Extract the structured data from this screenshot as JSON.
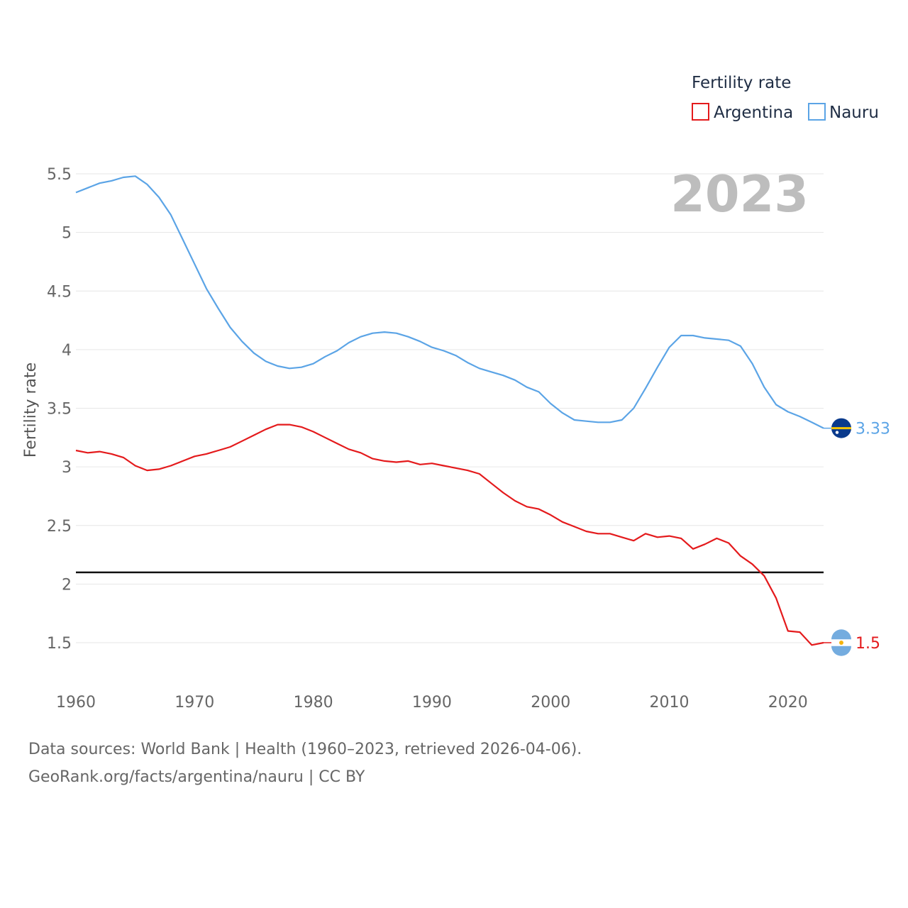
{
  "chart_data": {
    "type": "line",
    "ylabel": "Fertility rate",
    "xlabel": "",
    "year_label": "2023",
    "legend_title": "Fertility rate",
    "xlim": [
      1960,
      2023
    ],
    "ylim": [
      1.3,
      5.55
    ],
    "x_ticks": [
      1960,
      1970,
      1980,
      1990,
      2000,
      2010,
      2020
    ],
    "x_tick_labels": [
      "1960",
      "1970",
      "1980",
      "1990",
      "2000",
      "2010",
      "2020"
    ],
    "y_ticks": [
      1.5,
      2,
      2.5,
      3,
      3.5,
      4,
      4.5,
      5,
      5.5
    ],
    "y_tick_labels": [
      "1.5",
      "2",
      "2.5",
      "3",
      "3.5",
      "4",
      "4.5",
      "5",
      "5.5"
    ],
    "reference_line": 2.1,
    "x": [
      1960,
      1961,
      1962,
      1963,
      1964,
      1965,
      1966,
      1967,
      1968,
      1969,
      1970,
      1971,
      1972,
      1973,
      1974,
      1975,
      1976,
      1977,
      1978,
      1979,
      1980,
      1981,
      1982,
      1983,
      1984,
      1985,
      1986,
      1987,
      1988,
      1989,
      1990,
      1991,
      1992,
      1993,
      1994,
      1995,
      1996,
      1997,
      1998,
      1999,
      2000,
      2001,
      2002,
      2003,
      2004,
      2005,
      2006,
      2007,
      2008,
      2009,
      2010,
      2011,
      2012,
      2013,
      2014,
      2015,
      2016,
      2017,
      2018,
      2019,
      2020,
      2021,
      2022,
      2023
    ],
    "series": [
      {
        "name": "Argentina",
        "color": "#e41a1c",
        "end_label": "1.5",
        "values": [
          3.14,
          3.12,
          3.13,
          3.11,
          3.08,
          3.01,
          2.97,
          2.98,
          3.01,
          3.05,
          3.09,
          3.11,
          3.14,
          3.17,
          3.22,
          3.27,
          3.32,
          3.36,
          3.36,
          3.34,
          3.3,
          3.25,
          3.2,
          3.15,
          3.12,
          3.07,
          3.05,
          3.04,
          3.05,
          3.02,
          3.03,
          3.01,
          2.99,
          2.97,
          2.94,
          2.86,
          2.78,
          2.71,
          2.66,
          2.64,
          2.59,
          2.53,
          2.49,
          2.45,
          2.43,
          2.43,
          2.4,
          2.37,
          2.43,
          2.4,
          2.41,
          2.39,
          2.3,
          2.34,
          2.39,
          2.35,
          2.24,
          2.17,
          2.07,
          1.88,
          1.6,
          1.59,
          1.48,
          1.5
        ]
      },
      {
        "name": "Nauru",
        "color": "#5ba4e6",
        "end_label": "3.33",
        "values": [
          5.34,
          5.38,
          5.42,
          5.44,
          5.47,
          5.48,
          5.41,
          5.3,
          5.15,
          4.94,
          4.73,
          4.52,
          4.35,
          4.19,
          4.07,
          3.97,
          3.9,
          3.86,
          3.84,
          3.85,
          3.88,
          3.94,
          3.99,
          4.06,
          4.11,
          4.14,
          4.15,
          4.14,
          4.11,
          4.07,
          4.02,
          3.99,
          3.95,
          3.89,
          3.84,
          3.81,
          3.78,
          3.74,
          3.68,
          3.64,
          3.54,
          3.46,
          3.4,
          3.39,
          3.38,
          3.38,
          3.4,
          3.5,
          3.67,
          3.85,
          4.02,
          4.12,
          4.12,
          4.1,
          4.09,
          4.08,
          4.03,
          3.88,
          3.68,
          3.53,
          3.47,
          3.43,
          3.38,
          3.33
        ]
      }
    ]
  },
  "footer": {
    "line1": "Data sources: World Bank | Health (1960–2023, retrieved 2026-04-06).",
    "line2": "GeoRank.org/facts/argentina/nauru | CC BY"
  }
}
